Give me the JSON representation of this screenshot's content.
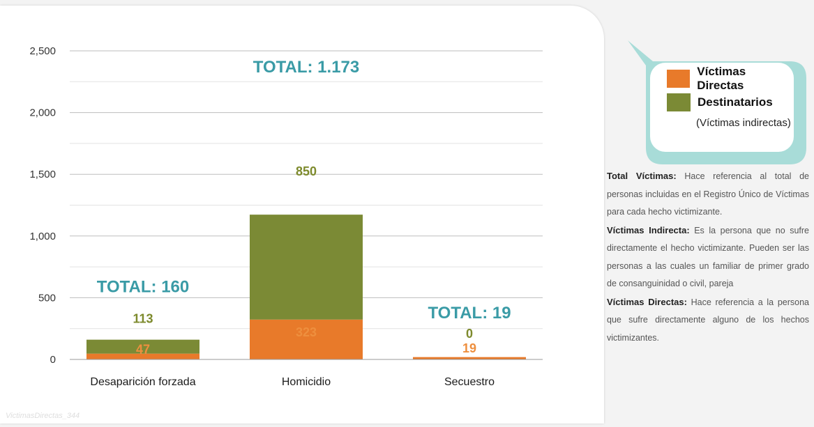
{
  "chart_data": {
    "type": "bar",
    "stacked": true,
    "categories": [
      "Desaparición forzada",
      "Homicidio",
      "Secuestro"
    ],
    "series": [
      {
        "name": "Víctimas Directas",
        "color": "#e87a2a",
        "values": [
          47,
          323,
          19
        ]
      },
      {
        "name": "Destinatarios",
        "color": "#7b8a35",
        "values": [
          113,
          850,
          0
        ]
      }
    ],
    "totals": [
      "TOTAL: 160",
      "TOTAL: 1.173",
      "TOTAL: 19"
    ],
    "ylim": [
      0,
      2500
    ],
    "y_ticks": [
      "0",
      "500",
      "1,000",
      "1,500",
      "2,000",
      "2,500"
    ],
    "grid": true
  },
  "legend": {
    "items": [
      {
        "label": "Víctimas Directas",
        "color": "#e87a2a"
      },
      {
        "label": "Destinatarios",
        "color": "#7b8a35"
      }
    ],
    "sub": "(Víctimas indirectas)"
  },
  "definitions": [
    {
      "term": "Total Víctimas:",
      "text": " Hace referencia al total de personas incluidas en el Registro Único de Víctimas para cada hecho victimizante."
    },
    {
      "term": "Víctimas Indirecta:",
      "text": " Es la persona que no sufre directamente el hecho victimizante. Pueden ser las personas a las cuales un familiar de primer grado de consanguinidad o civil, pareja"
    },
    {
      "term": "Víctimas Directas:",
      "text": " Hace referencia a la persona que sufre directamente alguno de los hechos victimizantes."
    }
  ],
  "watermark": "VictimasDirectas_344",
  "colors": {
    "accent": "#3a9ba6",
    "callout_border": "#a8dcd8"
  }
}
